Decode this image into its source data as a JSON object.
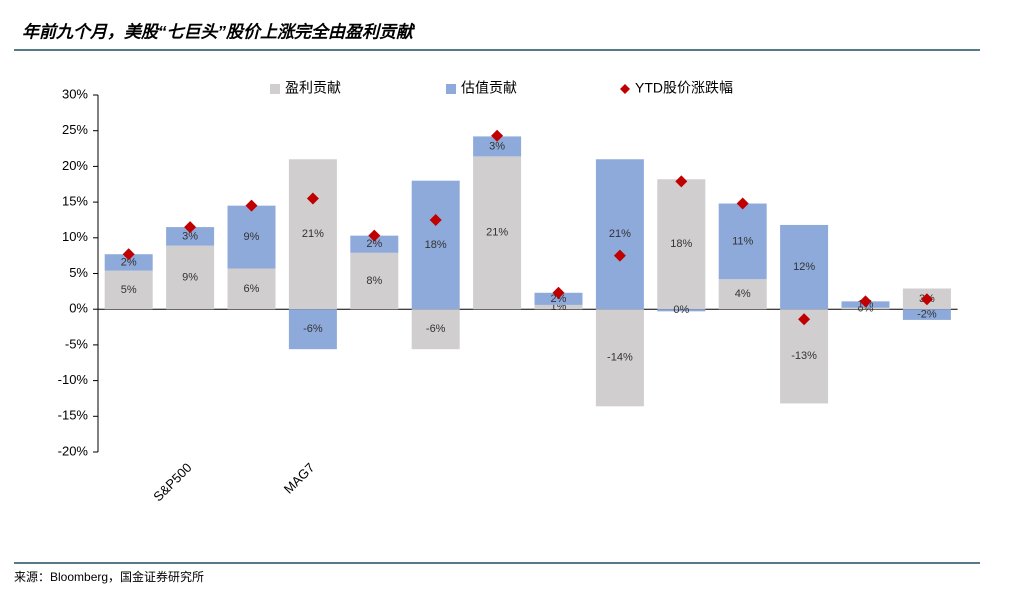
{
  "title": "年前九个月，美股“七巨头”股价上涨完全由盈利贡献",
  "source": "来源：Bloomberg，国金证券研究所",
  "chart_data": {
    "type": "bar",
    "stacked": true,
    "categories": [
      null,
      "S&P500",
      null,
      "MAG7",
      null,
      null,
      null,
      null,
      null,
      null,
      null,
      null,
      null,
      null
    ],
    "series": [
      {
        "name": "盈利贡献",
        "color": "#d0cece",
        "kind": "bar",
        "values": [
          5.4,
          8.9,
          5.7,
          21,
          7.9,
          -5.6,
          21.4,
          0.6,
          -13.6,
          18.2,
          4.2,
          -13.2,
          0.2,
          2.9
        ],
        "value_labels": [
          "5%",
          "9%",
          "6%",
          "21%",
          "8%",
          "-6%",
          "21%",
          "1%",
          "-14%",
          "18%",
          "4%",
          "-13%",
          "0%",
          "3%"
        ]
      },
      {
        "name": "估值贡献",
        "color": "#8eaadb",
        "kind": "bar",
        "values": [
          2.3,
          2.6,
          8.8,
          -5.6,
          2.4,
          18,
          2.8,
          1.7,
          21,
          -0.3,
          10.6,
          11.8,
          0.9,
          -1.5
        ],
        "value_labels": [
          "2%",
          "3%",
          "9%",
          "-6%",
          "2%",
          "18%",
          "3%",
          "2%",
          "21%",
          "0%",
          "11%",
          "12%",
          "1%",
          "-2%"
        ]
      },
      {
        "name": "YTD股价涨跌幅",
        "color": "#c00000",
        "kind": "diamond",
        "values": [
          7.7,
          11.5,
          14.5,
          15.5,
          10.3,
          12.5,
          24.3,
          2.3,
          7.5,
          17.9,
          14.8,
          -1.4,
          1.1,
          1.4
        ]
      }
    ],
    "ylim": [
      -20,
      30
    ],
    "yticks": [
      {
        "value": -20,
        "label": "-20%"
      },
      {
        "value": -15,
        "label": "-15%"
      },
      {
        "value": -10,
        "label": "-10%"
      },
      {
        "value": -5,
        "label": "-5%"
      },
      {
        "value": 0,
        "label": "0%"
      },
      {
        "value": 5,
        "label": "5%"
      },
      {
        "value": 10,
        "label": "10%"
      },
      {
        "value": 15,
        "label": "15%"
      },
      {
        "value": 20,
        "label": "20%"
      },
      {
        "value": 25,
        "label": "25%"
      },
      {
        "value": 30,
        "label": "30%"
      }
    ]
  }
}
